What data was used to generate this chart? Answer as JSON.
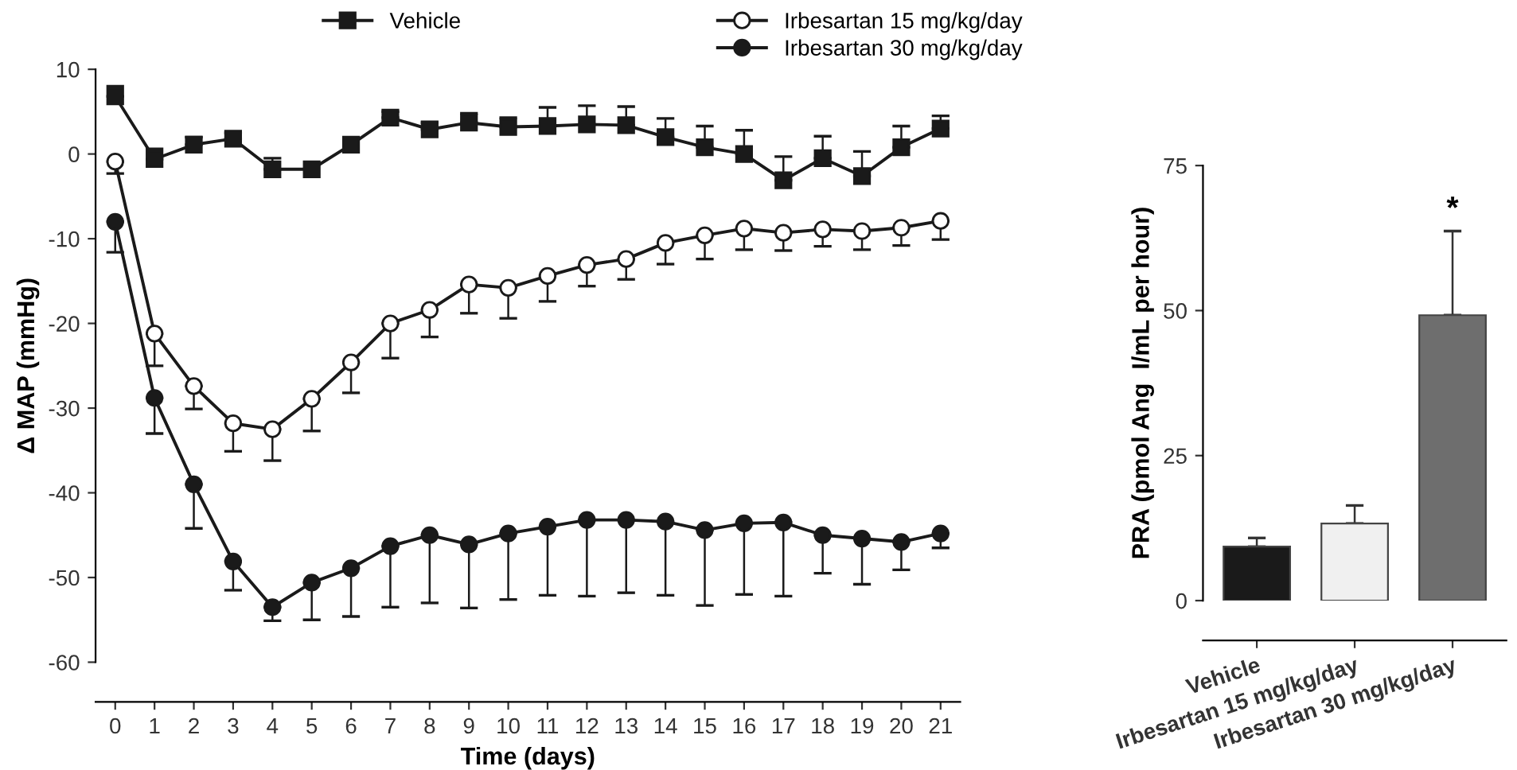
{
  "chart_data": [
    {
      "type": "line",
      "xlabel": "Time (days)",
      "ylabel": "Δ MAP (mmHg)",
      "x": [
        0,
        1,
        2,
        3,
        4,
        5,
        6,
        7,
        8,
        9,
        10,
        11,
        12,
        13,
        14,
        15,
        16,
        17,
        18,
        19,
        20,
        21
      ],
      "xlim": [
        -0.5,
        21.5
      ],
      "xticks": [
        0,
        1,
        2,
        3,
        4,
        5,
        6,
        7,
        8,
        9,
        10,
        11,
        12,
        13,
        14,
        15,
        16,
        17,
        18,
        19,
        20,
        21
      ],
      "ylim": [
        -60,
        10
      ],
      "yticks": [
        -60,
        -50,
        -40,
        -30,
        -20,
        -10,
        0,
        10
      ],
      "grid": false,
      "legend": "top",
      "line_style": "solid",
      "series": [
        {
          "name": "Vehicle",
          "color": "#1a1a1a",
          "marker": "square",
          "values": [
            6.8,
            -0.6,
            1.1,
            1.8,
            -1.8,
            -1.8,
            1.1,
            4.3,
            2.9,
            3.7,
            3.2,
            3.3,
            3.5,
            3.4,
            2.0,
            0.8,
            0.0,
            -3.1,
            -0.5,
            -2.6,
            0.8,
            3.0
          ],
          "errors": [
            [
              6.8,
              8.0
            ],
            [
              -0.6,
              0.6
            ],
            [
              1.1,
              2.0
            ],
            [
              1.8,
              2.5
            ],
            [
              -1.8,
              -0.5
            ],
            null,
            null,
            [
              4.3,
              5.0
            ],
            [
              2.9,
              3.7
            ],
            [
              3.7,
              4.8
            ],
            [
              3.2,
              4.3
            ],
            [
              3.3,
              5.5
            ],
            [
              3.5,
              5.7
            ],
            [
              3.4,
              5.6
            ],
            [
              2.0,
              4.2
            ],
            [
              0.8,
              3.3
            ],
            [
              0.0,
              2.8
            ],
            [
              -3.1,
              -0.3
            ],
            [
              -0.5,
              2.1
            ],
            [
              -2.6,
              0.3
            ],
            [
              0.8,
              3.3
            ],
            [
              3.0,
              4.5
            ]
          ]
        },
        {
          "name": "Irbesartan 15 mg/kg/day",
          "color": "#ffffff",
          "marker": "circle",
          "values": [
            -0.9,
            -21.2,
            -27.4,
            -31.8,
            -32.5,
            -28.9,
            -24.6,
            -20.0,
            -18.4,
            -15.4,
            -15.8,
            -14.4,
            -13.1,
            -12.4,
            -10.5,
            -9.6,
            -8.8,
            -9.3,
            -8.9,
            -9.1,
            -8.7,
            -7.9
          ],
          "errors": [
            [
              -2.3,
              -0.9
            ],
            [
              -25.0,
              -21.2
            ],
            [
              -30.1,
              -27.4
            ],
            [
              -35.1,
              -31.8
            ],
            [
              -36.2,
              -32.5
            ],
            [
              -32.7,
              -28.9
            ],
            [
              -28.2,
              -24.6
            ],
            [
              -24.1,
              -20.0
            ],
            [
              -21.6,
              -18.4
            ],
            [
              -18.8,
              -15.4
            ],
            [
              -19.4,
              -15.8
            ],
            [
              -17.4,
              -14.4
            ],
            [
              -15.6,
              -13.1
            ],
            [
              -14.8,
              -12.4
            ],
            [
              -13.0,
              -10.5
            ],
            [
              -12.4,
              -9.6
            ],
            [
              -11.3,
              -8.8
            ],
            [
              -11.4,
              -9.3
            ],
            [
              -10.9,
              -8.9
            ],
            [
              -11.3,
              -9.1
            ],
            [
              -10.8,
              -8.7
            ],
            [
              -10.1,
              -7.9
            ]
          ]
        },
        {
          "name": "Irbesartan 30 mg/kg/day",
          "color": "#1a1a1a",
          "marker": "circle",
          "values": [
            -8.0,
            -28.8,
            -39.0,
            -48.1,
            -53.5,
            -50.6,
            -48.9,
            -46.3,
            -45.0,
            -46.1,
            -44.8,
            -44.0,
            -43.2,
            -43.2,
            -43.4,
            -44.4,
            -43.6,
            -43.5,
            -45.0,
            -45.4,
            -45.8,
            -44.8
          ],
          "errors": [
            [
              -11.6,
              -8.0
            ],
            [
              -33.0,
              -28.8
            ],
            [
              -44.2,
              -39.0
            ],
            [
              -51.5,
              -48.1
            ],
            [
              -55.1,
              -53.5
            ],
            [
              -55.0,
              -50.6
            ],
            [
              -54.6,
              -48.9
            ],
            [
              -53.5,
              -46.3
            ],
            [
              -53.0,
              -45.0
            ],
            [
              -53.6,
              -46.1
            ],
            [
              -52.6,
              -44.8
            ],
            [
              -52.1,
              -44.0
            ],
            [
              -52.2,
              -43.2
            ],
            [
              -51.8,
              -43.2
            ],
            [
              -52.1,
              -43.4
            ],
            [
              -53.3,
              -44.4
            ],
            [
              -52.0,
              -43.6
            ],
            [
              -52.2,
              -43.5
            ],
            [
              -49.5,
              -45.0
            ],
            [
              -50.8,
              -45.4
            ],
            [
              -49.1,
              -45.8
            ],
            [
              -46.5,
              -44.8
            ]
          ]
        }
      ]
    },
    {
      "type": "bar",
      "ylabel": "PRA (pmol Ang  I/mL per hour)",
      "categories": [
        "Vehicle",
        "Irbesartan 15 mg/kg/day",
        "Irbesartan 30 mg/kg/day"
      ],
      "values": [
        9.3,
        13.3,
        49.2
      ],
      "colors": [
        "#1a1a1a",
        "#f0f0f0",
        "#6e6e6e"
      ],
      "errors": [
        [
          9.3,
          10.8
        ],
        [
          13.3,
          16.4
        ],
        [
          49.2,
          63.7
        ]
      ],
      "ylim": [
        0,
        75
      ],
      "yticks": [
        0,
        25,
        50,
        75
      ],
      "grid": false,
      "legend": false,
      "annotations": [
        "*"
      ]
    }
  ]
}
